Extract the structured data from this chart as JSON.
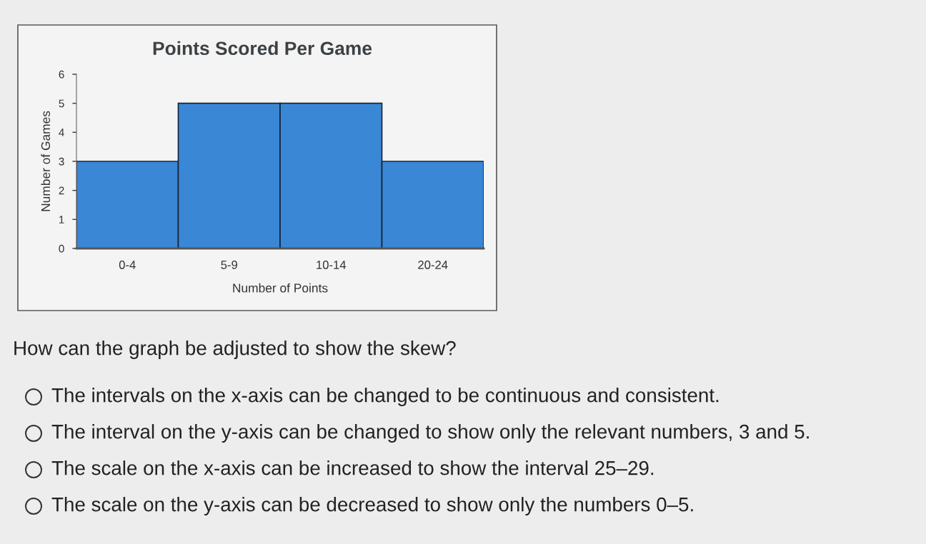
{
  "chart_data": {
    "type": "bar",
    "title": "Points Scored Per Game",
    "xlabel": "Number of Points",
    "ylabel": "Number of Games",
    "categories": [
      "0-4",
      "5-9",
      "10-14",
      "20-24"
    ],
    "values": [
      3,
      5,
      5,
      3
    ],
    "color": "#3a87d6",
    "ylim": [
      0,
      6
    ],
    "yticks": [
      0,
      1,
      2,
      3,
      4,
      5,
      6
    ],
    "annotations": [
      "How can the graph be adjusted to show the skew?",
      "The intervals on the x-axis can be changed to be continuous and consistent.",
      "The interval on the y-axis can be changed to show only the relevant numbers, 3 and 5.",
      "The scale on the x-axis can be increased to show the interval 25–29.",
      "The scale on the y-axis can be decreased to show only the numbers 0–5."
    ]
  }
}
